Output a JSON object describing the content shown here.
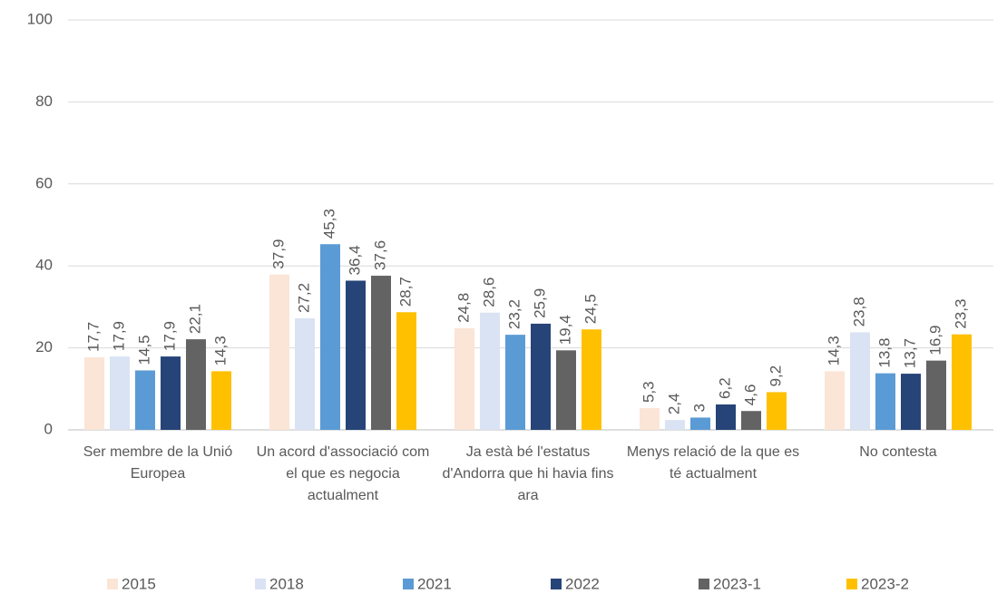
{
  "chart_data": {
    "type": "bar",
    "categories": [
      "Ser membre de la Unió Europea",
      "Un acord d'associació com el que es negocia actualment",
      "Ja està bé l'estatus d'Andorra que hi havia fins ara",
      "Menys relació de la que es té actualment",
      "No contesta"
    ],
    "series": [
      {
        "name": "2015",
        "color": "#fbe5d6",
        "values": [
          17.7,
          37.9,
          24.8,
          5.3,
          14.3
        ],
        "value_labels": [
          "17,7",
          "37,9",
          "24,8",
          "5,3",
          "14,3"
        ]
      },
      {
        "name": "2018",
        "color": "#dae3f3",
        "values": [
          17.9,
          27.2,
          28.6,
          2.4,
          23.8
        ],
        "value_labels": [
          "17,9",
          "27,2",
          "28,6",
          "2,4",
          "23,8"
        ]
      },
      {
        "name": "2021",
        "color": "#5b9bd5",
        "values": [
          14.5,
          45.3,
          23.2,
          3,
          13.8
        ],
        "value_labels": [
          "14,5",
          "45,3",
          "23,2",
          "3",
          "13,8"
        ]
      },
      {
        "name": "2022",
        "color": "#264478",
        "values": [
          17.9,
          36.4,
          25.9,
          6.2,
          13.7
        ],
        "value_labels": [
          "17,9",
          "36,4",
          "25,9",
          "6,2",
          "13,7"
        ]
      },
      {
        "name": "2023-1",
        "color": "#636363",
        "values": [
          22.1,
          37.6,
          19.4,
          4.6,
          16.9
        ],
        "value_labels": [
          "22,1",
          "37,6",
          "19,4",
          "4,6",
          "16,9"
        ]
      },
      {
        "name": "2023-2",
        "color": "#ffc000",
        "values": [
          14.3,
          28.7,
          24.5,
          9.2,
          23.3
        ],
        "value_labels": [
          "14,3",
          "28,7",
          "24,5",
          "9,2",
          "23,3"
        ]
      }
    ],
    "ylim": [
      0,
      100
    ],
    "yticks": [
      0,
      20,
      40,
      60,
      80,
      100
    ],
    "grid": true,
    "legend": "bottom"
  }
}
